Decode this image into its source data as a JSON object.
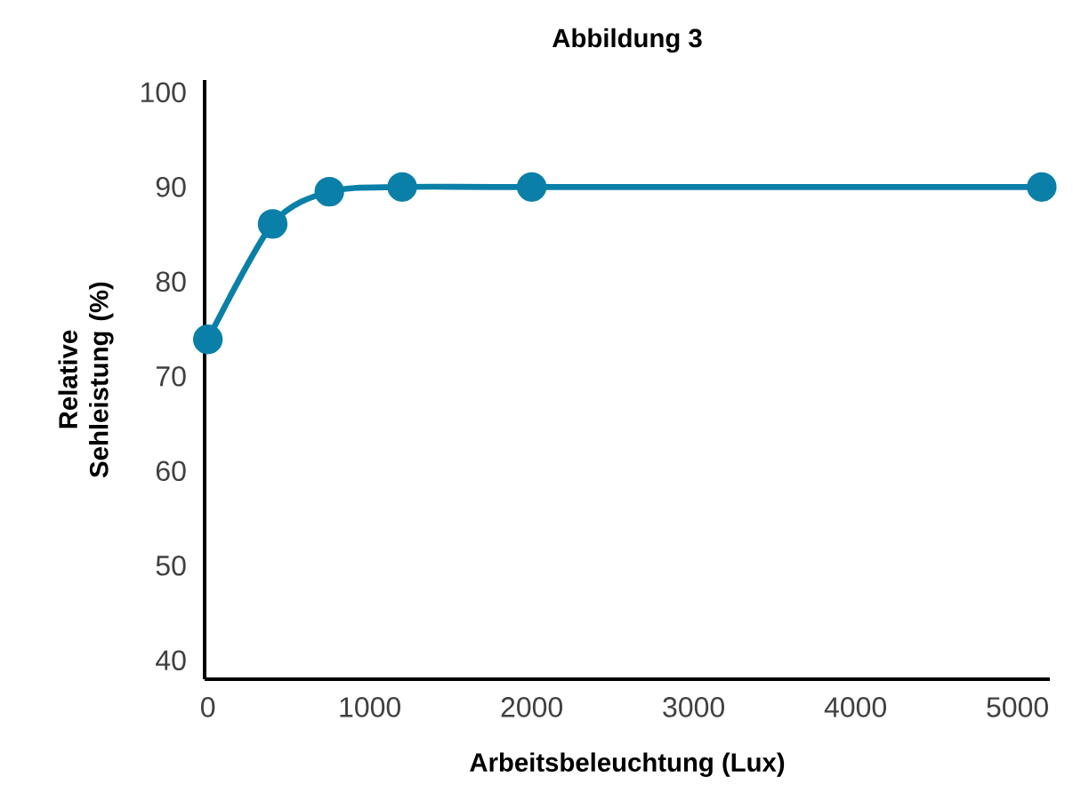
{
  "chart_data": {
    "type": "line",
    "title": "Abbildung 3",
    "xlabel": "Arbeitsbeleuchtung (Lux)",
    "ylabel": "Relative Sehleistung (%)",
    "x": [
      0,
      400,
      750,
      1200,
      2000,
      5150
    ],
    "series": [
      {
        "color": "#0a80a8",
        "values": [
          73.9,
          86.1,
          89.5,
          90,
          90,
          90
        ]
      }
    ],
    "xlim": [
      -20,
      5200
    ],
    "ylim": [
      38,
      101.3
    ],
    "xticks": [
      0,
      1000,
      2000,
      3000,
      4000,
      5000
    ],
    "yticks": [
      40,
      50,
      60,
      70,
      80,
      90,
      100
    ],
    "grid": false,
    "marker": "circle",
    "line_style": "solid"
  }
}
